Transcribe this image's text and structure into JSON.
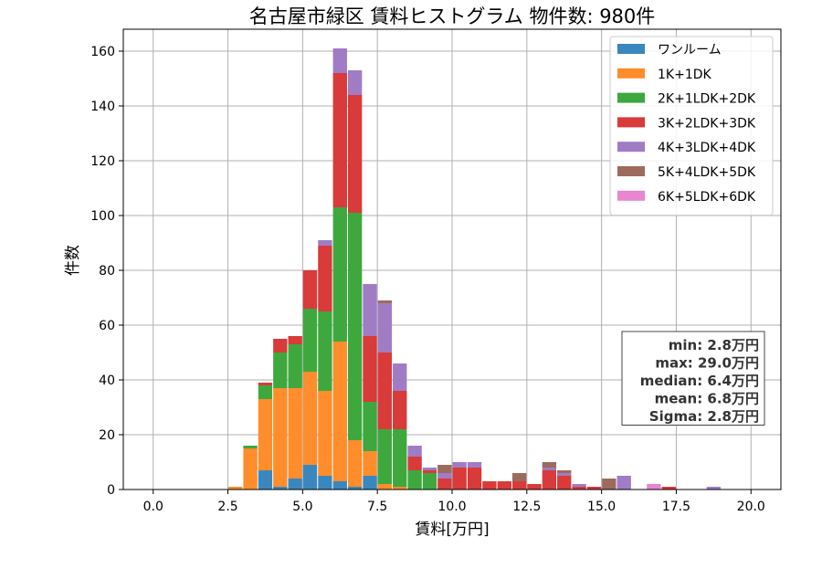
{
  "chart_data": {
    "type": "bar",
    "title": "名古屋市緑区 賃料ヒストグラム 物件数: 980件",
    "xlabel": "賃料[万円]",
    "ylabel": "件数",
    "xlim": [
      -1.0,
      21.0
    ],
    "ylim": [
      0,
      168
    ],
    "x_ticks": [
      0.0,
      2.5,
      5.0,
      7.5,
      10.0,
      12.5,
      15.0,
      17.5,
      20.0
    ],
    "x_tick_labels": [
      "0.0",
      "2.5",
      "5.0",
      "7.5",
      "10.0",
      "12.5",
      "15.0",
      "17.5",
      "20.0"
    ],
    "y_ticks": [
      0,
      20,
      40,
      60,
      80,
      100,
      120,
      140,
      160
    ],
    "y_tick_labels": [
      "0",
      "20",
      "40",
      "60",
      "80",
      "100",
      "120",
      "140",
      "160"
    ],
    "grid": true,
    "stacked": true,
    "legend_position": "top-right",
    "bin_width": 0.5,
    "x": [
      2.5,
      3.0,
      3.5,
      4.0,
      4.5,
      5.0,
      5.5,
      6.0,
      6.5,
      7.0,
      7.5,
      8.0,
      8.5,
      9.0,
      9.5,
      10.0,
      10.5,
      11.0,
      11.5,
      12.0,
      12.5,
      13.0,
      13.5,
      14.0,
      14.5,
      15.0,
      15.5,
      16.5,
      17.0,
      18.5
    ],
    "series": [
      {
        "name": "ワンルーム",
        "color": "#3a87be",
        "values": [
          0,
          0,
          7,
          1,
          4,
          9,
          5,
          3,
          1,
          5,
          0,
          0,
          0,
          0,
          0,
          0,
          0,
          0,
          0,
          0,
          0,
          0,
          0,
          0,
          0,
          0,
          0,
          0,
          0,
          0
        ]
      },
      {
        "name": "1K+1DK",
        "color": "#ff8d2b",
        "values": [
          1,
          15,
          26,
          36,
          33,
          34,
          31,
          51,
          17,
          9,
          2,
          1,
          0,
          0,
          0,
          0,
          0,
          0,
          0,
          0,
          0,
          0,
          0,
          0,
          0,
          0,
          0,
          0,
          0,
          0
        ]
      },
      {
        "name": "2K+1LDK+2DK",
        "color": "#3ea83e",
        "values": [
          0,
          1,
          5,
          13,
          16,
          23,
          29,
          49,
          83,
          18,
          20,
          21,
          7,
          6,
          0,
          0,
          0,
          0,
          0,
          0,
          0,
          0,
          0,
          0,
          0,
          0,
          0,
          0,
          0,
          0
        ]
      },
      {
        "name": "3K+2LDK+3DK",
        "color": "#d93a3a",
        "values": [
          0,
          0,
          1,
          5,
          3,
          14,
          24,
          49,
          43,
          24,
          28,
          14,
          5,
          1,
          4,
          8,
          8,
          3,
          3,
          3,
          2,
          7,
          5,
          1,
          1,
          0,
          0,
          0,
          1,
          0
        ]
      },
      {
        "name": "4K+3LDK+4DK",
        "color": "#a07cc5",
        "values": [
          0,
          0,
          0,
          0,
          0,
          0,
          2,
          9,
          9,
          19,
          18,
          10,
          4,
          1,
          2,
          2,
          2,
          0,
          0,
          0,
          0,
          1,
          1,
          1,
          0,
          0,
          5,
          0,
          0,
          1
        ]
      },
      {
        "name": "5K+4LDK+5DK",
        "color": "#9c6b5e",
        "values": [
          0,
          0,
          0,
          0,
          0,
          0,
          0,
          0,
          0,
          0,
          1,
          0,
          0,
          0,
          3,
          0,
          0,
          0,
          0,
          3,
          0,
          2,
          1,
          0,
          0,
          4,
          0,
          0,
          0,
          0
        ]
      },
      {
        "name": "6K+5LDK+6DK",
        "color": "#e886cf",
        "values": [
          0,
          0,
          0,
          0,
          0,
          0,
          0,
          0,
          0,
          0,
          0,
          0,
          0,
          0,
          0,
          0,
          0,
          0,
          0,
          0,
          0,
          0,
          0,
          0,
          0,
          0,
          0,
          2,
          0,
          0
        ]
      }
    ],
    "stats_box": [
      "min: 2.8万円",
      "max: 29.0万円",
      "median: 6.4万円",
      "mean: 6.8万円",
      "Sigma: 2.8万円"
    ]
  }
}
